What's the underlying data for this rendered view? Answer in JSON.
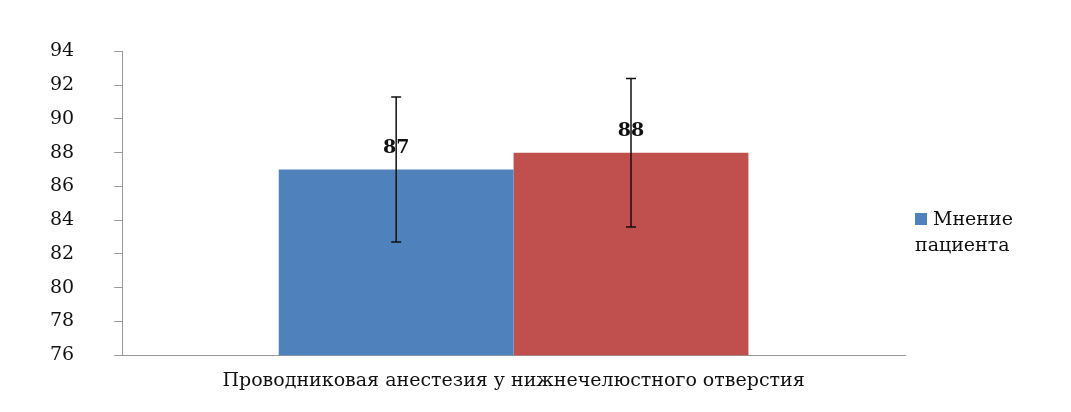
{
  "chart_data": {
    "type": "bar",
    "categories": [
      "Проводниковая анестезия у нижнечелюстного отверстия"
    ],
    "series": [
      {
        "name": "Мнение пациента",
        "color": "#4f81bd",
        "values": [
          87
        ],
        "errors": [
          4.3
        ]
      },
      {
        "color": "#c0504d",
        "values": [
          88
        ],
        "errors": [
          4.4
        ]
      }
    ],
    "ylim": [
      76,
      94
    ],
    "yticks": [
      76,
      78,
      80,
      82,
      84,
      86,
      88,
      90,
      92,
      94
    ],
    "data_labels": true,
    "legend": "right",
    "grid": false
  }
}
